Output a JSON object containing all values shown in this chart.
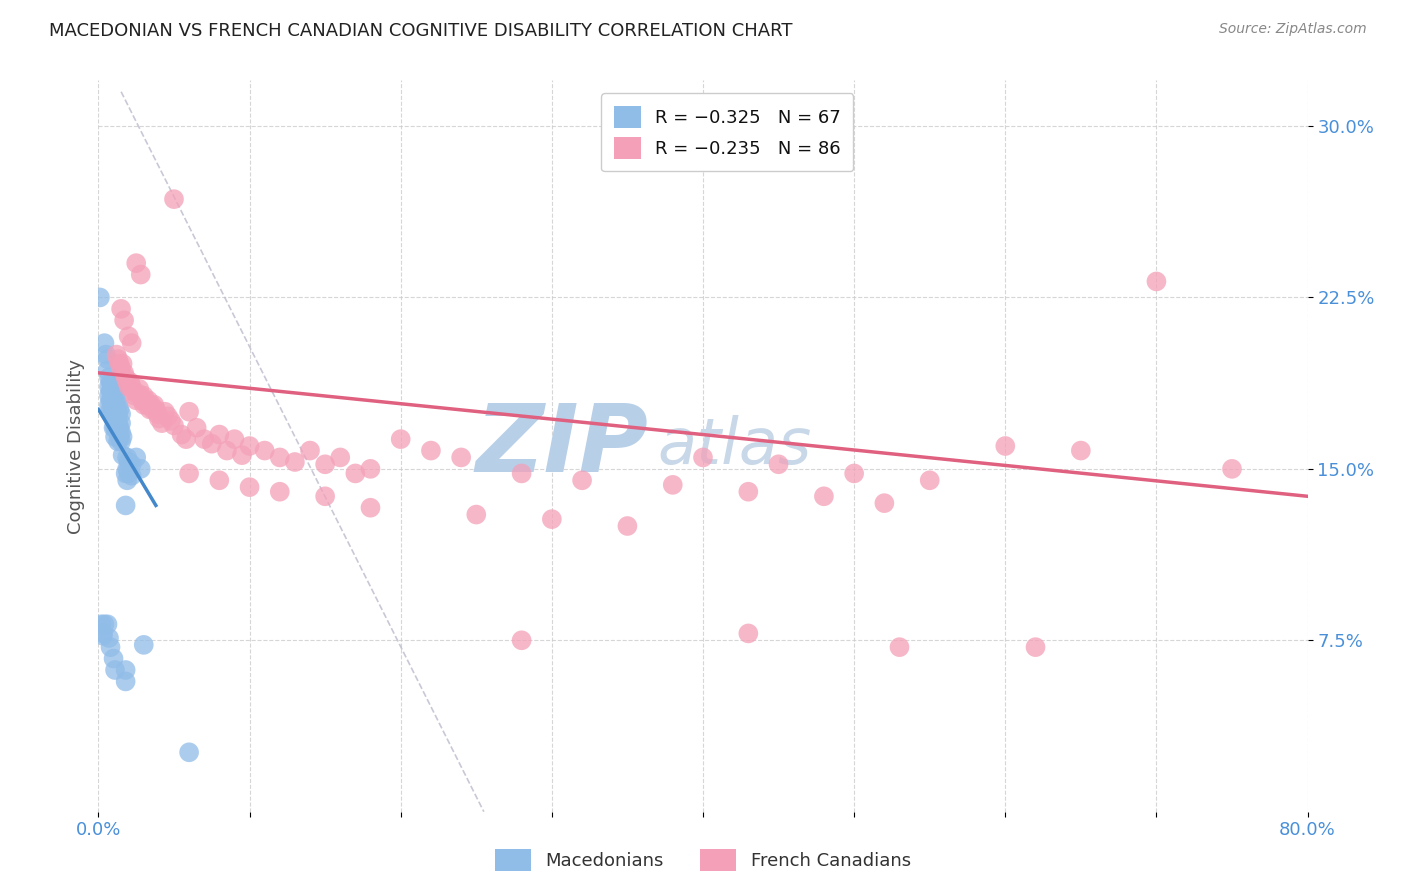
{
  "title": "MACEDONIAN VS FRENCH CANADIAN COGNITIVE DISABILITY CORRELATION CHART",
  "source": "Source: ZipAtlas.com",
  "ylabel": "Cognitive Disability",
  "xlim": [
    0.0,
    0.8
  ],
  "ylim": [
    0.0,
    0.32
  ],
  "yticks": [
    0.075,
    0.15,
    0.225,
    0.3
  ],
  "ytick_labels": [
    "7.5%",
    "15.0%",
    "22.5%",
    "30.0%"
  ],
  "xticks": [
    0.0,
    0.1,
    0.2,
    0.3,
    0.4,
    0.5,
    0.6,
    0.7,
    0.8
  ],
  "xtick_labels": [
    "0.0%",
    "",
    "",
    "",
    "",
    "",
    "",
    "",
    "80.0%"
  ],
  "macedonian_color": "#90bce8",
  "french_color": "#f4a0b8",
  "macedonian_line_color": "#4488cc",
  "french_line_color": "#e06080",
  "diagonal_color": "#bbbbcc",
  "macedonian_scatter": [
    [
      0.001,
      0.225
    ],
    [
      0.004,
      0.205
    ],
    [
      0.005,
      0.2
    ],
    [
      0.006,
      0.198
    ],
    [
      0.006,
      0.193
    ],
    [
      0.007,
      0.19
    ],
    [
      0.007,
      0.186
    ],
    [
      0.007,
      0.182
    ],
    [
      0.007,
      0.178
    ],
    [
      0.008,
      0.188
    ],
    [
      0.008,
      0.184
    ],
    [
      0.008,
      0.18
    ],
    [
      0.008,
      0.176
    ],
    [
      0.009,
      0.186
    ],
    [
      0.009,
      0.182
    ],
    [
      0.009,
      0.178
    ],
    [
      0.009,
      0.174
    ],
    [
      0.01,
      0.184
    ],
    [
      0.01,
      0.18
    ],
    [
      0.01,
      0.176
    ],
    [
      0.01,
      0.172
    ],
    [
      0.01,
      0.168
    ],
    [
      0.011,
      0.182
    ],
    [
      0.011,
      0.178
    ],
    [
      0.011,
      0.168
    ],
    [
      0.011,
      0.164
    ],
    [
      0.012,
      0.18
    ],
    [
      0.012,
      0.176
    ],
    [
      0.012,
      0.172
    ],
    [
      0.012,
      0.168
    ],
    [
      0.013,
      0.178
    ],
    [
      0.013,
      0.174
    ],
    [
      0.013,
      0.17
    ],
    [
      0.013,
      0.166
    ],
    [
      0.013,
      0.162
    ],
    [
      0.014,
      0.176
    ],
    [
      0.014,
      0.168
    ],
    [
      0.014,
      0.164
    ],
    [
      0.015,
      0.174
    ],
    [
      0.015,
      0.17
    ],
    [
      0.015,
      0.166
    ],
    [
      0.015,
      0.162
    ],
    [
      0.016,
      0.164
    ],
    [
      0.016,
      0.156
    ],
    [
      0.018,
      0.148
    ],
    [
      0.018,
      0.134
    ],
    [
      0.019,
      0.155
    ],
    [
      0.019,
      0.15
    ],
    [
      0.019,
      0.145
    ],
    [
      0.02,
      0.153
    ],
    [
      0.02,
      0.148
    ],
    [
      0.022,
      0.152
    ],
    [
      0.022,
      0.147
    ],
    [
      0.025,
      0.155
    ],
    [
      0.028,
      0.15
    ],
    [
      0.003,
      0.078
    ],
    [
      0.007,
      0.076
    ],
    [
      0.008,
      0.072
    ],
    [
      0.01,
      0.067
    ],
    [
      0.011,
      0.062
    ],
    [
      0.018,
      0.062
    ],
    [
      0.018,
      0.057
    ],
    [
      0.002,
      0.082
    ],
    [
      0.004,
      0.082
    ],
    [
      0.006,
      0.082
    ],
    [
      0.003,
      0.077
    ],
    [
      0.06,
      0.026
    ],
    [
      0.03,
      0.073
    ]
  ],
  "french_scatter": [
    [
      0.05,
      0.268
    ],
    [
      0.025,
      0.24
    ],
    [
      0.028,
      0.235
    ],
    [
      0.015,
      0.22
    ],
    [
      0.017,
      0.215
    ],
    [
      0.02,
      0.208
    ],
    [
      0.022,
      0.205
    ],
    [
      0.012,
      0.2
    ],
    [
      0.013,
      0.198
    ],
    [
      0.014,
      0.196
    ],
    [
      0.015,
      0.194
    ],
    [
      0.016,
      0.196
    ],
    [
      0.017,
      0.192
    ],
    [
      0.018,
      0.19
    ],
    [
      0.019,
      0.188
    ],
    [
      0.02,
      0.186
    ],
    [
      0.021,
      0.188
    ],
    [
      0.022,
      0.186
    ],
    [
      0.023,
      0.184
    ],
    [
      0.024,
      0.182
    ],
    [
      0.025,
      0.18
    ],
    [
      0.026,
      0.183
    ],
    [
      0.027,
      0.185
    ],
    [
      0.028,
      0.182
    ],
    [
      0.029,
      0.18
    ],
    [
      0.03,
      0.182
    ],
    [
      0.03,
      0.178
    ],
    [
      0.031,
      0.18
    ],
    [
      0.032,
      0.178
    ],
    [
      0.033,
      0.18
    ],
    [
      0.034,
      0.176
    ],
    [
      0.035,
      0.178
    ],
    [
      0.036,
      0.176
    ],
    [
      0.037,
      0.178
    ],
    [
      0.038,
      0.176
    ],
    [
      0.039,
      0.174
    ],
    [
      0.04,
      0.172
    ],
    [
      0.042,
      0.17
    ],
    [
      0.044,
      0.175
    ],
    [
      0.046,
      0.173
    ],
    [
      0.048,
      0.171
    ],
    [
      0.05,
      0.169
    ],
    [
      0.055,
      0.165
    ],
    [
      0.058,
      0.163
    ],
    [
      0.06,
      0.175
    ],
    [
      0.065,
      0.168
    ],
    [
      0.07,
      0.163
    ],
    [
      0.075,
      0.161
    ],
    [
      0.08,
      0.165
    ],
    [
      0.085,
      0.158
    ],
    [
      0.09,
      0.163
    ],
    [
      0.095,
      0.156
    ],
    [
      0.1,
      0.16
    ],
    [
      0.11,
      0.158
    ],
    [
      0.12,
      0.155
    ],
    [
      0.13,
      0.153
    ],
    [
      0.14,
      0.158
    ],
    [
      0.15,
      0.152
    ],
    [
      0.16,
      0.155
    ],
    [
      0.17,
      0.148
    ],
    [
      0.18,
      0.15
    ],
    [
      0.2,
      0.163
    ],
    [
      0.22,
      0.158
    ],
    [
      0.24,
      0.155
    ],
    [
      0.06,
      0.148
    ],
    [
      0.08,
      0.145
    ],
    [
      0.1,
      0.142
    ],
    [
      0.12,
      0.14
    ],
    [
      0.15,
      0.138
    ],
    [
      0.18,
      0.133
    ],
    [
      0.25,
      0.13
    ],
    [
      0.3,
      0.128
    ],
    [
      0.35,
      0.125
    ],
    [
      0.4,
      0.155
    ],
    [
      0.45,
      0.152
    ],
    [
      0.5,
      0.148
    ],
    [
      0.55,
      0.145
    ],
    [
      0.6,
      0.16
    ],
    [
      0.65,
      0.158
    ],
    [
      0.7,
      0.232
    ],
    [
      0.75,
      0.15
    ],
    [
      0.28,
      0.148
    ],
    [
      0.32,
      0.145
    ],
    [
      0.38,
      0.143
    ],
    [
      0.43,
      0.14
    ],
    [
      0.48,
      0.138
    ],
    [
      0.52,
      0.135
    ],
    [
      0.28,
      0.075
    ],
    [
      0.43,
      0.078
    ],
    [
      0.53,
      0.072
    ],
    [
      0.62,
      0.072
    ]
  ],
  "macedonian_line": {
    "x0": 0.0,
    "y0": 0.176,
    "x1": 0.038,
    "y1": 0.134
  },
  "french_line": {
    "x0": 0.0,
    "y0": 0.192,
    "x1": 0.8,
    "y1": 0.138
  },
  "diagonal_line": {
    "x0": 0.015,
    "y0": 0.315,
    "x1": 0.255,
    "y1": 0.0
  },
  "background_color": "#ffffff",
  "grid_color": "#cccccc",
  "tick_color": "#4a90d9",
  "title_color": "#222222",
  "source_color": "#888888",
  "ylabel_color": "#555555",
  "watermark_zip_color": "#b8cfe8",
  "watermark_atlas_color": "#c8d8e8"
}
